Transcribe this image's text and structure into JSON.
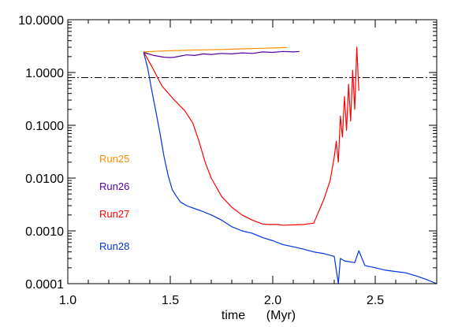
{
  "chart_data": {
    "type": "line",
    "xlabel": "time      (Myr)",
    "ylabel": "",
    "xlim": [
      1.0,
      2.8
    ],
    "ylim": [
      0.0001,
      10.0
    ],
    "yscale": "log",
    "grid": false,
    "x_ticks": [
      {
        "value": 1.0,
        "label": "1.0"
      },
      {
        "value": 1.5,
        "label": "1.5"
      },
      {
        "value": 2.0,
        "label": "2.0"
      },
      {
        "value": 2.5,
        "label": "2.5"
      }
    ],
    "x_minor_ticks": [
      1.1,
      1.2,
      1.3,
      1.4,
      1.6,
      1.7,
      1.8,
      1.9,
      2.1,
      2.2,
      2.3,
      2.4,
      2.6,
      2.7
    ],
    "y_ticks": [
      {
        "value": 10.0,
        "label": "10.0000"
      },
      {
        "value": 1.0,
        "label": "1.0000"
      },
      {
        "value": 0.1,
        "label": "0.1000"
      },
      {
        "value": 0.01,
        "label": "0.0100"
      },
      {
        "value": 0.001,
        "label": "0.0010"
      },
      {
        "value": 0.0001,
        "label": "0.0001"
      }
    ],
    "reference_line": {
      "y": 0.8,
      "style": "dash-dot",
      "color": "#000000"
    },
    "legend": {
      "placement": "left, inside plot, stacked vertically",
      "style": "colored text labels"
    },
    "series": [
      {
        "name": "Run25",
        "color": "#ff8c00",
        "x": [
          1.37,
          1.45,
          1.55,
          1.65,
          1.75,
          1.85,
          1.95,
          2.05,
          2.07
        ],
        "y": [
          2.45,
          2.55,
          2.62,
          2.68,
          2.73,
          2.8,
          2.87,
          2.95,
          2.97
        ]
      },
      {
        "name": "Run26",
        "color": "#5a00a0",
        "x": [
          1.37,
          1.42,
          1.47,
          1.5,
          1.52,
          1.55,
          1.58,
          1.62,
          1.66,
          1.7,
          1.75,
          1.8,
          1.85,
          1.9,
          1.95,
          2.0,
          2.05,
          2.1,
          2.13
        ],
        "y": [
          2.4,
          2.1,
          1.95,
          1.92,
          1.95,
          2.05,
          2.15,
          2.1,
          2.25,
          2.2,
          2.3,
          2.25,
          2.35,
          2.3,
          2.45,
          2.4,
          2.5,
          2.45,
          2.5
        ]
      },
      {
        "name": "Run27",
        "color": "#ff0000",
        "x": [
          1.37,
          1.41,
          1.46,
          1.52,
          1.57,
          1.61,
          1.64,
          1.67,
          1.7,
          1.75,
          1.8,
          1.85,
          1.9,
          1.95,
          1.98,
          2.02,
          2.05,
          2.1,
          2.15,
          2.2,
          2.25,
          2.28,
          2.3,
          2.31,
          2.32,
          2.33,
          2.34,
          2.35,
          2.36,
          2.37,
          2.38,
          2.39,
          2.4,
          2.41,
          2.42
        ],
        "y": [
          2.45,
          1.3,
          0.55,
          0.3,
          0.19,
          0.11,
          0.05,
          0.02,
          0.01,
          0.0045,
          0.0028,
          0.002,
          0.0016,
          0.00135,
          0.00132,
          0.00132,
          0.00128,
          0.0013,
          0.00132,
          0.0014,
          0.004,
          0.009,
          0.025,
          0.05,
          0.02,
          0.15,
          0.06,
          0.35,
          0.08,
          0.6,
          0.12,
          1.1,
          0.2,
          3.0,
          0.45
        ]
      },
      {
        "name": "Run28",
        "color": "#0033dd",
        "x": [
          1.37,
          1.39,
          1.41,
          1.43,
          1.45,
          1.47,
          1.49,
          1.51,
          1.53,
          1.55,
          1.58,
          1.6,
          1.65,
          1.7,
          1.75,
          1.8,
          1.85,
          1.9,
          1.95,
          2.0,
          2.05,
          2.1,
          2.15,
          2.2,
          2.25,
          2.3,
          2.32,
          2.33,
          2.35,
          2.4,
          2.42,
          2.45,
          2.5,
          2.55,
          2.6,
          2.65,
          2.7,
          2.75,
          2.8
        ],
        "y": [
          2.4,
          1.2,
          0.45,
          0.18,
          0.07,
          0.025,
          0.011,
          0.006,
          0.0045,
          0.0035,
          0.003,
          0.0028,
          0.0024,
          0.002,
          0.0016,
          0.0012,
          0.001,
          0.0009,
          0.00075,
          0.00065,
          0.00055,
          0.0005,
          0.00045,
          0.0004,
          0.00037,
          0.00033,
          0.0001,
          0.0003,
          0.00027,
          0.00025,
          0.00042,
          0.00022,
          0.0002,
          0.00018,
          0.00017,
          0.00016,
          0.00014,
          0.00012,
          0.0001
        ]
      }
    ]
  }
}
